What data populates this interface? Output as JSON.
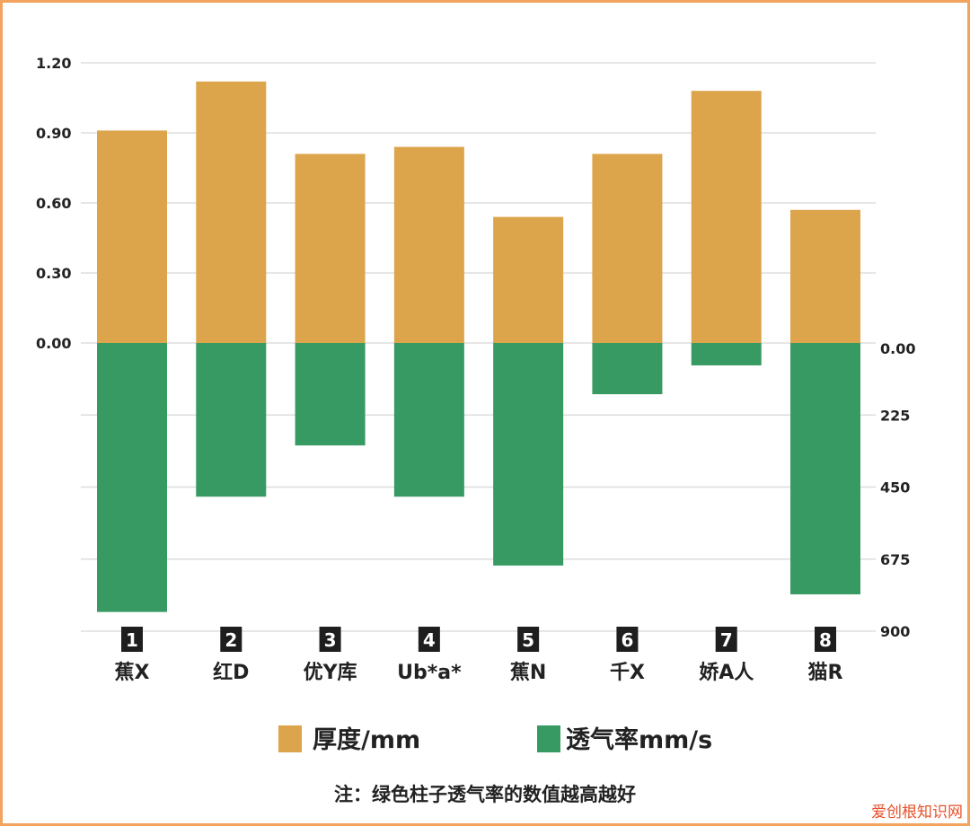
{
  "chart_data": {
    "type": "bar",
    "categories": [
      "蕉X",
      "红D",
      "优Y库",
      "Ub*a*",
      "蕉N",
      "千X",
      "娇A人",
      "猫R"
    ],
    "category_numbers": [
      "1",
      "2",
      "3",
      "4",
      "5",
      "6",
      "7",
      "8"
    ],
    "series": [
      {
        "name": "厚度/mm",
        "axis": "left",
        "direction": "up",
        "color": "#dca44b",
        "values": [
          0.91,
          1.12,
          0.81,
          0.84,
          0.54,
          0.81,
          1.08,
          0.57
        ]
      },
      {
        "name": "透气率mm/s",
        "axis": "right",
        "direction": "down",
        "color": "#379a63",
        "values": [
          840,
          480,
          320,
          480,
          695,
          160,
          70,
          785
        ]
      }
    ],
    "left_axis": {
      "ticks": [
        "0.00",
        "0.30",
        "0.60",
        "0.90",
        "1.20"
      ],
      "range": [
        0,
        1.2
      ]
    },
    "right_axis": {
      "ticks": [
        "0.00",
        "225",
        "450",
        "675",
        "900"
      ],
      "range": [
        0,
        900
      ],
      "inverted": true
    },
    "grid": true,
    "legend_placement": "bottom",
    "note": "注：绿色柱子透气率的数值越高越好"
  },
  "watermark": "爱创根知识网"
}
